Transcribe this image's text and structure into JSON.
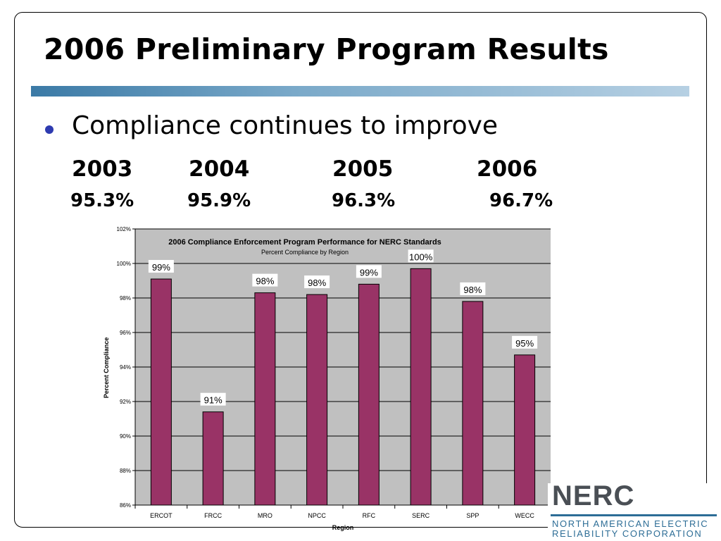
{
  "slide": {
    "title": "2006 Preliminary Program Results",
    "bullet": "Compliance continues to improve",
    "years": [
      "2003",
      "2004",
      "2005",
      "2006"
    ],
    "rates": [
      "95.3%",
      "95.9%",
      "96.3%",
      "96.7%"
    ]
  },
  "logo": {
    "name": "NERC",
    "line1": "NORTH AMERICAN ELECTRIC",
    "line2": "RELIABILITY CORPORATION"
  },
  "colors": {
    "bar": "#993366",
    "plot_bg": "#c0c0c0",
    "rule": "#3b7aa6",
    "bullet": "#2e3bb0"
  },
  "chart_data": {
    "type": "bar",
    "title": "2006 Compliance Enforcement Program Performance for NERC Standards",
    "subtitle": "Percent Compliance by Region",
    "xlabel": "Region",
    "ylabel": "Percent Compliance",
    "categories": [
      "ERCOT",
      "FRCC",
      "MRO",
      "NPCC",
      "RFC",
      "SERC",
      "SPP",
      "WECC"
    ],
    "values": [
      99.1,
      91.4,
      98.3,
      98.2,
      98.8,
      99.7,
      97.8,
      94.7
    ],
    "data_labels": [
      "99%",
      "91%",
      "98%",
      "98%",
      "99%",
      "100%",
      "98%",
      "95%"
    ],
    "ylim": [
      86,
      102
    ],
    "yticks": [
      "86%",
      "88%",
      "90%",
      "92%",
      "94%",
      "96%",
      "98%",
      "100%",
      "102%"
    ],
    "grid": true,
    "legend": "none"
  }
}
